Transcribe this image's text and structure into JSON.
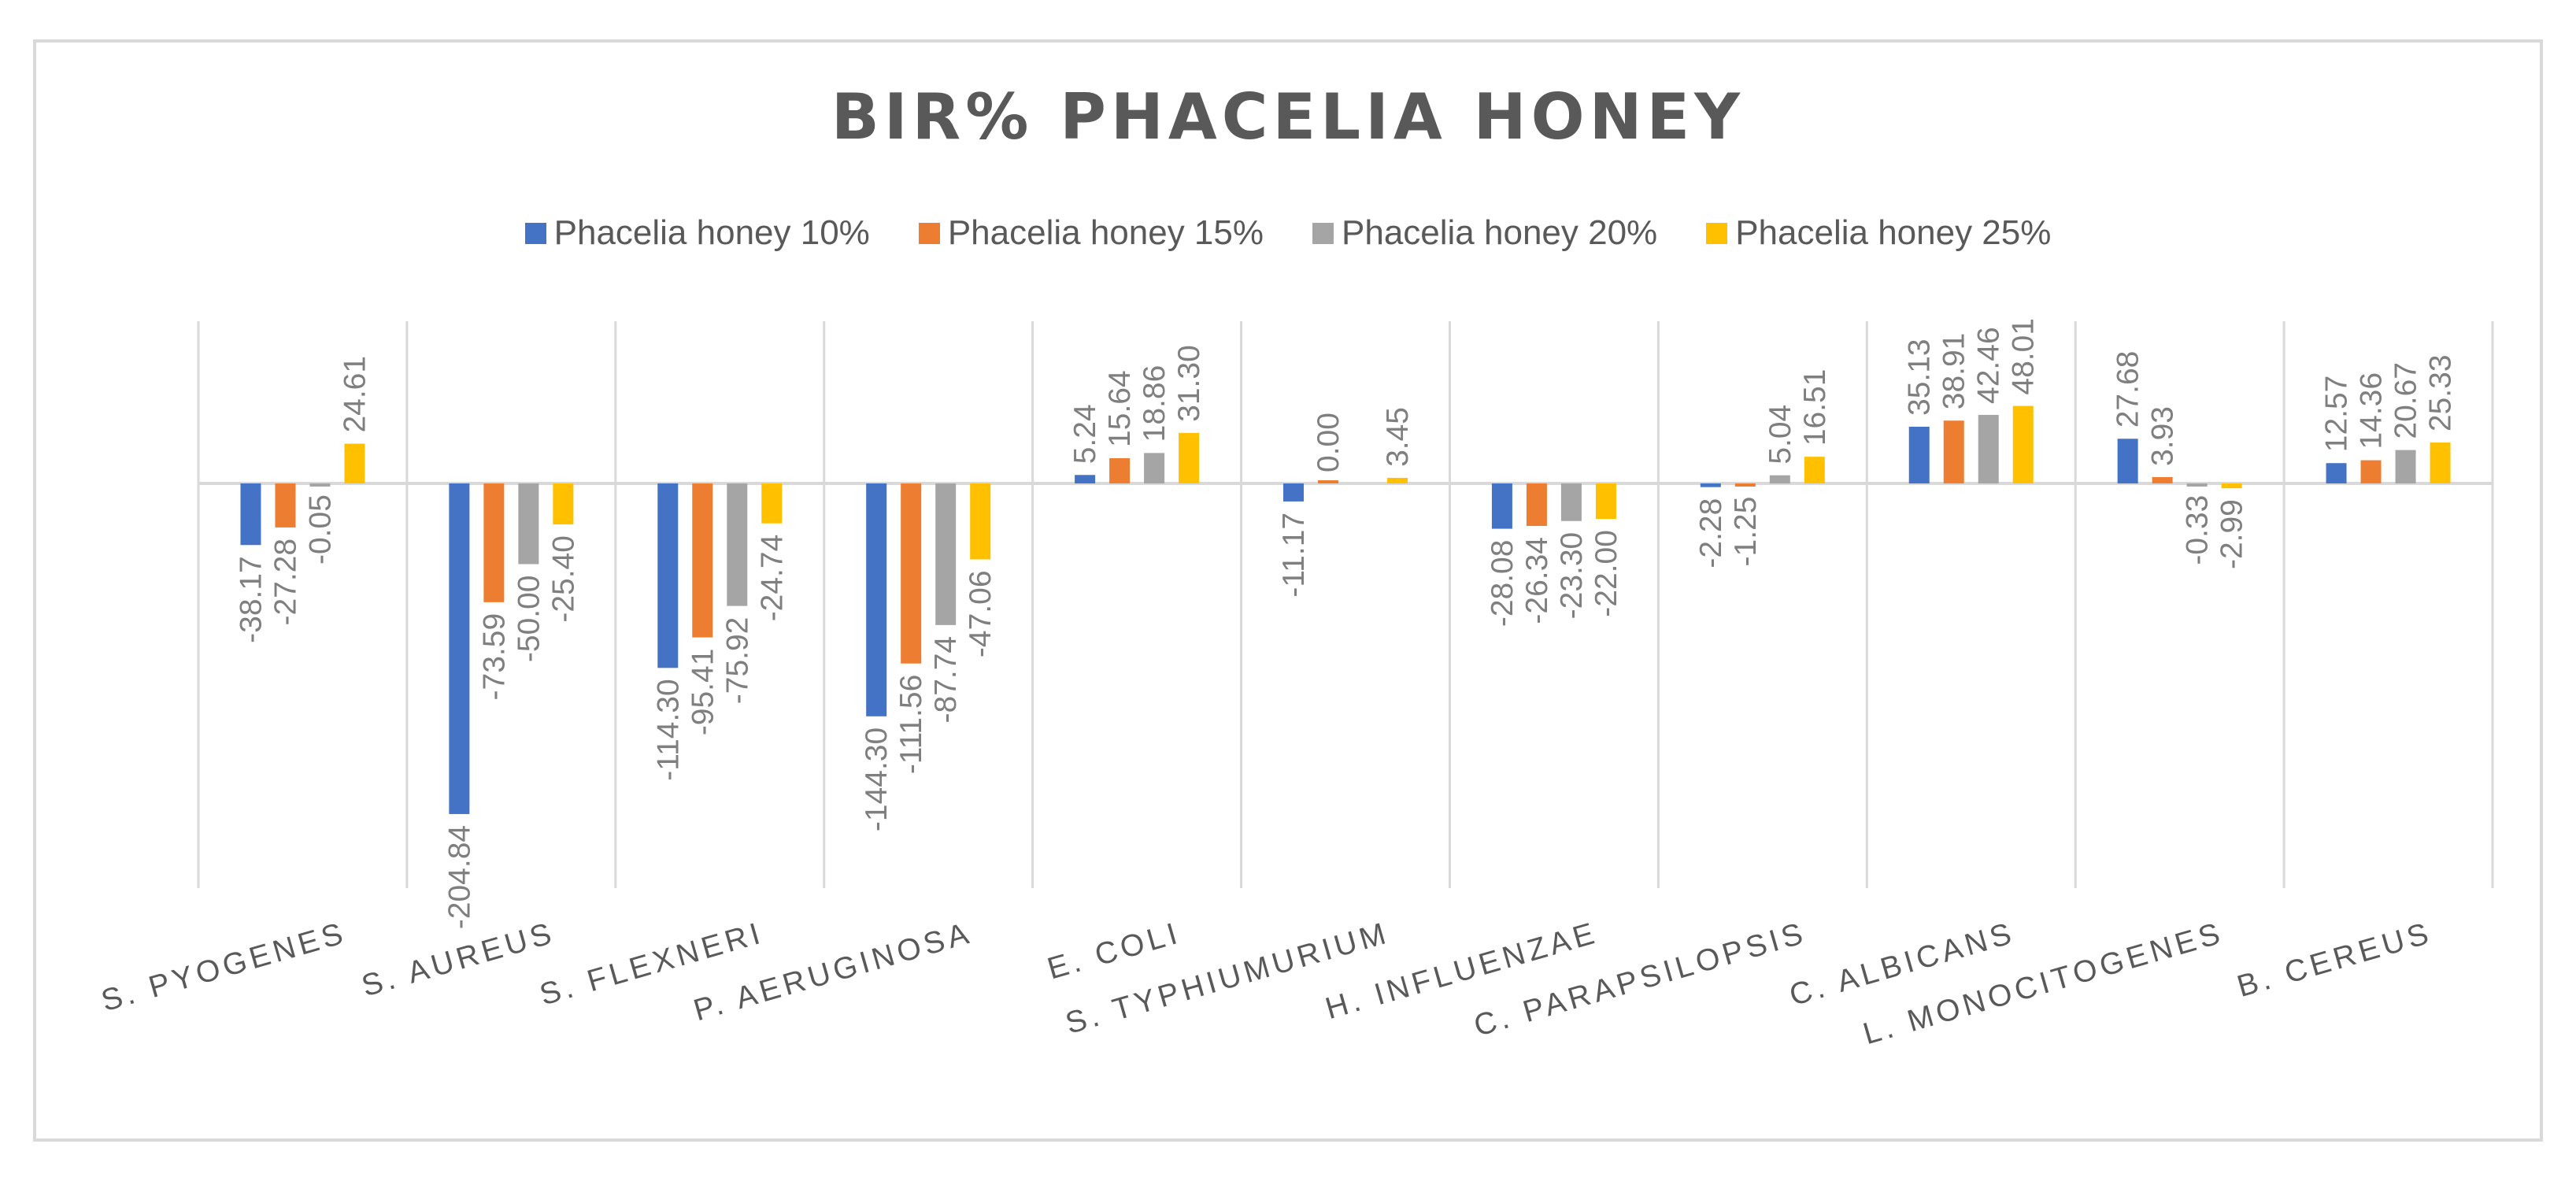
{
  "chart_data": {
    "type": "bar",
    "title": "BIR% PHACELIA  HONEY",
    "categories": [
      "S. PYOGENES",
      "S. AUREUS",
      "S. FLEXNERI",
      "P. AERUGINOSA",
      "E. COLI",
      "S. TYPHIUMURIUM",
      "H. INFLUENZAE",
      "C. PARAPSILOPSIS",
      "C. ALBICANS",
      "L. MONOCITOGENES",
      "B. CEREUS"
    ],
    "series": [
      {
        "name": "Phacelia honey  10%",
        "color": "#4472c4",
        "values": [
          -38.17,
          -204.84,
          -114.3,
          -144.3,
          5.24,
          -11.17,
          -28.08,
          -2.28,
          35.13,
          27.68,
          12.57
        ]
      },
      {
        "name": "Phacelia honey  15%",
        "color": "#ed7d31",
        "values": [
          -27.28,
          -73.59,
          -95.41,
          -111.56,
          15.64,
          0.0,
          -26.34,
          -1.25,
          38.91,
          3.93,
          14.36
        ]
      },
      {
        "name": "Phacelia honey  20%",
        "color": "#a5a5a5",
        "values": [
          -0.05,
          -50.0,
          -75.92,
          -87.74,
          18.86,
          null,
          -23.3,
          5.04,
          42.46,
          -0.33,
          20.67
        ]
      },
      {
        "name": "Phacelia honey  25%",
        "color": "#ffc000",
        "values": [
          24.61,
          -25.4,
          -24.74,
          -47.06,
          31.3,
          3.45,
          -22.0,
          16.51,
          48.01,
          -2.99,
          25.33
        ]
      }
    ],
    "value_labels": [
      [
        "-38.17",
        "-204.84",
        "-114.30",
        "-144.30",
        "5.24",
        "-11.17",
        "-28.08",
        "-2.28",
        "35.13",
        "27.68",
        "12.57"
      ],
      [
        "-27.28",
        "-73.59",
        "-95.41",
        "-111.56",
        "15.64",
        "0.00",
        "-26.34",
        "-1.25",
        "38.91",
        "3.93",
        "14.36"
      ],
      [
        "-0.05",
        "-50.00",
        "-75.92",
        "-87.74",
        "18.86",
        "",
        "-23.30",
        "5.04",
        "42.46",
        "-0.33",
        "20.67"
      ],
      [
        "24.61",
        "-25.40",
        "-24.74",
        "-47.06",
        "31.30",
        "3.45",
        "-22.00",
        "16.51",
        "48.01",
        "-2.99",
        "25.33"
      ]
    ],
    "xlabel": "",
    "ylabel": "",
    "ylim": [
      -250,
      100
    ],
    "grid": "vertical category separators",
    "legend_position": "top"
  }
}
